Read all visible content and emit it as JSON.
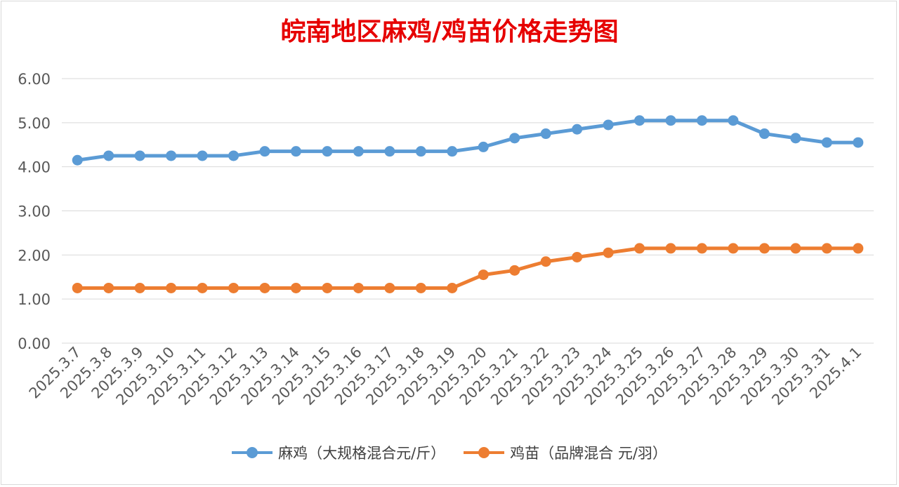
{
  "chart_data": {
    "type": "line",
    "title": "皖南地区麻鸡/鸡苗价格走势图",
    "xlabel": "",
    "ylabel": "",
    "ylim": [
      0,
      6
    ],
    "yticks": [
      "0.00",
      "1.00",
      "2.00",
      "3.00",
      "4.00",
      "5.00",
      "6.00"
    ],
    "grid": true,
    "legend_position": "bottom",
    "categories": [
      "2025.3.7",
      "2025.3.8",
      "2025.3.9",
      "2025.3.10",
      "2025.3.11",
      "2025.3.12",
      "2025.3.13",
      "2025.3.14",
      "2025.3.15",
      "2025.3.16",
      "2025.3.17",
      "2025.3.18",
      "2025.3.19",
      "2025.3.20",
      "2025.3.21",
      "2025.3.22",
      "2025.3.23",
      "2025.3.24",
      "2025.3.25",
      "2025.3.26",
      "2025.3.27",
      "2025.3.28",
      "2025.3.29",
      "2025.3.30",
      "2025.3.31",
      "2025.4.1"
    ],
    "series": [
      {
        "name": "麻鸡（大规格混合元/斤）",
        "color": "#5b9bd5",
        "values": [
          4.15,
          4.25,
          4.25,
          4.25,
          4.25,
          4.25,
          4.35,
          4.35,
          4.35,
          4.35,
          4.35,
          4.35,
          4.35,
          4.45,
          4.65,
          4.75,
          4.85,
          4.95,
          5.05,
          5.05,
          5.05,
          5.05,
          4.75,
          4.65,
          4.55,
          4.55
        ]
      },
      {
        "name": "鸡苗（品牌混合 元/羽）",
        "color": "#ed7d31",
        "values": [
          1.25,
          1.25,
          1.25,
          1.25,
          1.25,
          1.25,
          1.25,
          1.25,
          1.25,
          1.25,
          1.25,
          1.25,
          1.25,
          1.55,
          1.65,
          1.85,
          1.95,
          2.05,
          2.15,
          2.15,
          2.15,
          2.15,
          2.15,
          2.15,
          2.15,
          2.15
        ]
      }
    ]
  }
}
